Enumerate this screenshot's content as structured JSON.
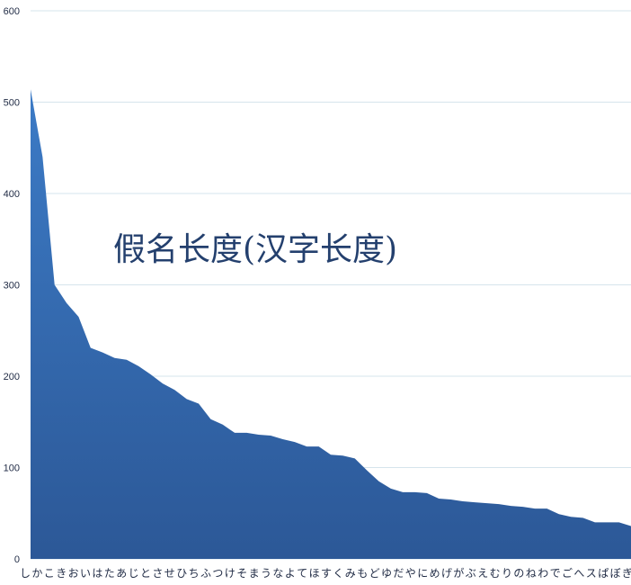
{
  "chart_data": {
    "type": "area",
    "title": "假名长度(汉字长度)",
    "xlabel": "",
    "ylabel": "",
    "ylim": [
      0,
      600
    ],
    "yticks": [
      0,
      100,
      200,
      300,
      400,
      500,
      600
    ],
    "grid": true,
    "legend": "none",
    "colors": {
      "fill_top": "#3c7bc6",
      "fill_bottom": "#2c5897",
      "grid": "#d6e4ec",
      "text": "#1f2a44",
      "title": "#24406e"
    },
    "categories": [
      "し",
      "か",
      "こ",
      "き",
      "お",
      "い",
      "は",
      "た",
      "あ",
      "じ",
      "と",
      "さ",
      "せ",
      "ひ",
      "ち",
      "ふ",
      "つ",
      "け",
      "そ",
      "ま",
      "う",
      "な",
      "よ",
      "て",
      "ほ",
      "す",
      "く",
      "み",
      "も",
      "ど",
      "ゆ",
      "だ",
      "や",
      "に",
      "め",
      "げ",
      "が",
      "ぶ",
      "え",
      "む",
      "り",
      "の",
      "ね",
      "わ",
      "で",
      "ご",
      "へ",
      "ス",
      "ぱ",
      "ぼ",
      "ぎ"
    ],
    "values": [
      514,
      440,
      300,
      280,
      265,
      231,
      226,
      220,
      218,
      211,
      202,
      192,
      185,
      175,
      170,
      153,
      147,
      138,
      138,
      136,
      135,
      131,
      128,
      123,
      123,
      114,
      113,
      110,
      97,
      85,
      77,
      73,
      73,
      72,
      66,
      65,
      63,
      62,
      61,
      60,
      58,
      57,
      55,
      55,
      49,
      46,
      45,
      40,
      40,
      40,
      36
    ]
  }
}
